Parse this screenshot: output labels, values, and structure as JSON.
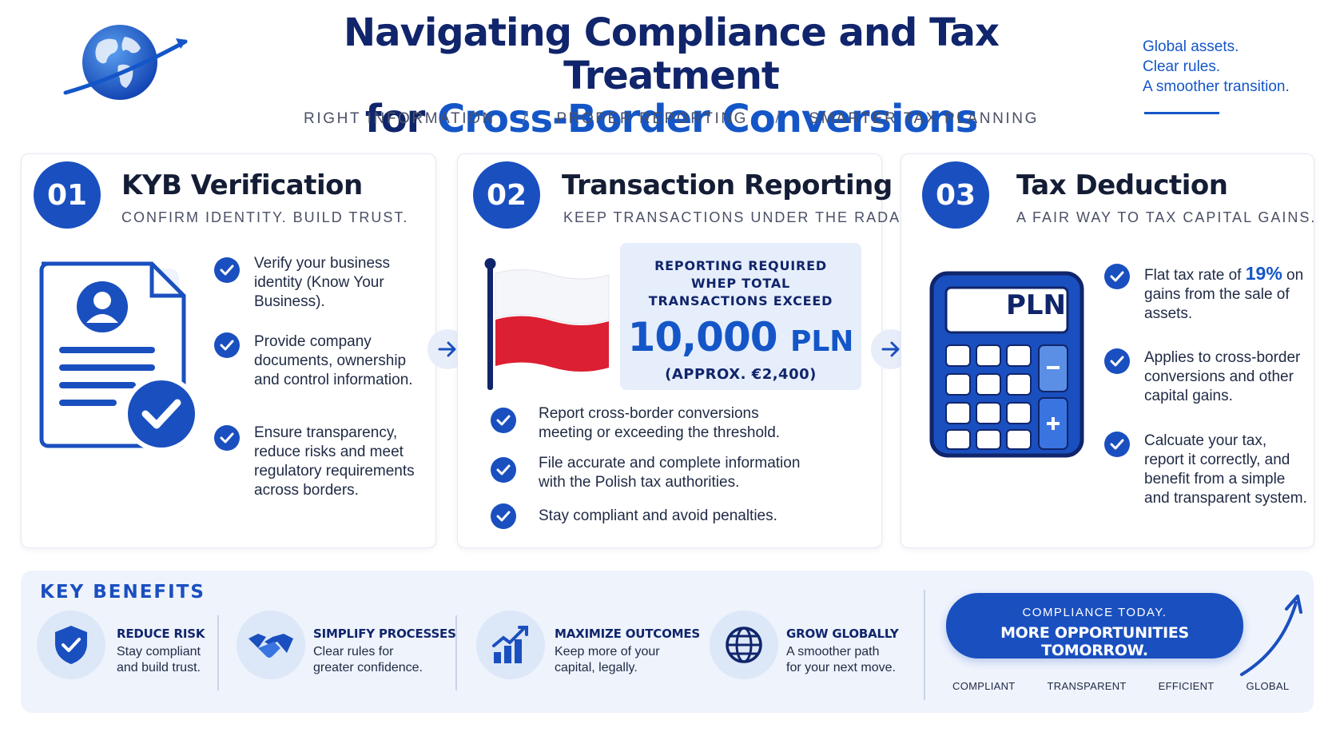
{
  "header": {
    "title_line1": "Navigating Compliance and Tax Treatment",
    "title_line2_prefix": "for ",
    "title_line2_accent": "Cross-Border Conversions",
    "subtitle_items": [
      "RIGHT INFORMATION",
      "PROPER REPORTING",
      "SMARTER TAX PLANNING"
    ],
    "subtitle_separator": "/",
    "tagline": [
      "Global assets.",
      "Clear rules.",
      "A smoother transition."
    ]
  },
  "steps": [
    {
      "number": "01",
      "title": "KYB Verification",
      "subtitle": "CONFIRM IDENTITY. BUILD TRUST.",
      "illustration": "document-check-icon",
      "items": [
        "Verify your business identity (Know Your Business).",
        "Provide company documents, ownership and control information.",
        "Ensure transparency, reduce risks and meet regulatory requirements across borders."
      ]
    },
    {
      "number": "02",
      "title": "Transaction Reporting",
      "subtitle": "KEEP TRANSACTIONS UNDER THE RADAR.",
      "illustration": "poland-flag-icon",
      "report_label": "REPORTING REQUIRED WHEP TOTAL TRANSACTIONS EXCEED",
      "report_amount": "10,000",
      "report_currency": "PLN",
      "report_approx": "(APPROX. €2,400)",
      "items": [
        "Report cross-border conversions meeting or exceeding the threshold.",
        "File accurate and complete information with the Polish tax authorities.",
        "Stay compliant and avoid penalties."
      ]
    },
    {
      "number": "03",
      "title": "Tax Deduction",
      "subtitle": "A FAIR WAY TO TAX CAPITAL GAINS.",
      "illustration": "calculator-icon",
      "calculator_display": "PLN",
      "items_rich": [
        {
          "before": "Flat tax rate of ",
          "highlight": "19%",
          "after": " on gains from the sale of assets."
        },
        {
          "before": "Applies to cross-border conversions and other capital gains.",
          "highlight": "",
          "after": ""
        },
        {
          "before": "Calcuate your tax, report it correctly, and benefit from a simple and transparent system.",
          "highlight": "",
          "after": ""
        }
      ]
    }
  ],
  "benefits": {
    "title": "KEY BENEFITS",
    "items": [
      {
        "icon": "shield-check-icon",
        "title": "REDUCE RISK",
        "desc": [
          "Stay compliant",
          "and build trust."
        ]
      },
      {
        "icon": "handshake-icon",
        "title": "SIMPLIFY PROCESSES",
        "desc": [
          "Clear rules for",
          "greater confidence."
        ]
      },
      {
        "icon": "growth-chart-icon",
        "title": "MAXIMIZE OUTCOMES",
        "desc": [
          "Keep more of your",
          "capital, legally."
        ]
      },
      {
        "icon": "globe-icon",
        "title": "GROW GLOBALLY",
        "desc": [
          "A smoother path",
          "for your next move."
        ]
      }
    ]
  },
  "cta": {
    "small": "COMPLIANCE TODAY.",
    "big": "MORE OPPORTUNITIES TOMORROW.",
    "tags": [
      "COMPLIANT",
      "TRANSPARENT",
      "EFFICIENT",
      "GLOBAL"
    ]
  },
  "colors": {
    "primary": "#1a4fbf",
    "accent": "#1456c8",
    "navy": "#10256b",
    "flag_red": "#dc1f32"
  }
}
